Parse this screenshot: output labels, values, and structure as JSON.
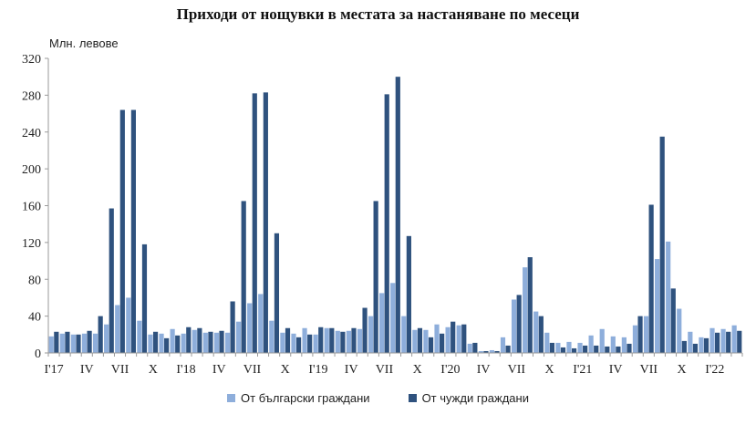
{
  "chart_data": {
    "type": "bar",
    "title": "Приходи от нощувки в местата за настаняване по месеци",
    "ylabel": "Млн. левове",
    "xlabel": "",
    "ylim": [
      0,
      320
    ],
    "yticks": [
      0,
      40,
      80,
      120,
      160,
      200,
      240,
      280,
      320
    ],
    "grid": false,
    "legend_position": "bottom",
    "categories": [
      "I'17",
      "II'17",
      "III'17",
      "IV'17",
      "V'17",
      "VI'17",
      "VII'17",
      "VIII'17",
      "IX'17",
      "X'17",
      "XI'17",
      "XII'17",
      "I'18",
      "II'18",
      "III'18",
      "IV'18",
      "V'18",
      "VI'18",
      "VII'18",
      "VIII'18",
      "IX'18",
      "X'18",
      "XI'18",
      "XII'18",
      "I'19",
      "II'19",
      "III'19",
      "IV'19",
      "V'19",
      "VI'19",
      "VII'19",
      "VIII'19",
      "IX'19",
      "X'19",
      "XI'19",
      "XII'19",
      "I'20",
      "II'20",
      "III'20",
      "IV'20",
      "V'20",
      "VI'20",
      "VII'20",
      "VIII'20",
      "IX'20",
      "X'20",
      "XI'20",
      "XII'20",
      "I'21",
      "II'21",
      "III'21",
      "IV'21",
      "V'21",
      "VI'21",
      "VII'21",
      "VIII'21",
      "IX'21",
      "X'21",
      "XI'21",
      "XII'21",
      "I'22",
      "II'22",
      "III'22"
    ],
    "tick_labels": [
      {
        "index": 0,
        "label": "I'17"
      },
      {
        "index": 3,
        "label": "IV"
      },
      {
        "index": 6,
        "label": "VII"
      },
      {
        "index": 9,
        "label": "X"
      },
      {
        "index": 12,
        "label": "I'18"
      },
      {
        "index": 15,
        "label": "IV"
      },
      {
        "index": 18,
        "label": "VII"
      },
      {
        "index": 21,
        "label": "X"
      },
      {
        "index": 24,
        "label": "I'19"
      },
      {
        "index": 27,
        "label": "IV"
      },
      {
        "index": 30,
        "label": "VII"
      },
      {
        "index": 33,
        "label": "X"
      },
      {
        "index": 36,
        "label": "I'20"
      },
      {
        "index": 39,
        "label": "IV"
      },
      {
        "index": 42,
        "label": "VII"
      },
      {
        "index": 45,
        "label": "X"
      },
      {
        "index": 48,
        "label": "I'21"
      },
      {
        "index": 51,
        "label": "IV"
      },
      {
        "index": 54,
        "label": "VII"
      },
      {
        "index": 57,
        "label": "X"
      },
      {
        "index": 60,
        "label": "I'22"
      }
    ],
    "series": [
      {
        "name": "От български граждани",
        "color": "#8eaedb",
        "values": [
          18,
          21,
          20,
          21,
          21,
          31,
          52,
          60,
          35,
          20,
          21,
          26,
          21,
          25,
          22,
          22,
          22,
          34,
          54,
          64,
          35,
          22,
          21,
          27,
          20,
          27,
          24,
          24,
          26,
          40,
          65,
          76,
          40,
          25,
          25,
          31,
          28,
          30,
          10,
          2,
          3,
          17,
          58,
          93,
          45,
          22,
          11,
          12,
          11,
          19,
          26,
          18,
          17,
          30,
          40,
          102,
          121,
          48,
          23,
          17,
          27,
          26,
          30
        ]
      },
      {
        "name": "От чужди граждани",
        "color": "#2f527e",
        "values": [
          23,
          23,
          20,
          24,
          40,
          157,
          264,
          264,
          118,
          23,
          16,
          19,
          28,
          27,
          23,
          24,
          56,
          165,
          282,
          283,
          130,
          27,
          17,
          20,
          28,
          27,
          23,
          27,
          49,
          165,
          281,
          300,
          127,
          27,
          17,
          21,
          34,
          31,
          11,
          2,
          2,
          8,
          63,
          104,
          40,
          11,
          6,
          5,
          8,
          8,
          7,
          7,
          10,
          40,
          161,
          235,
          70,
          13,
          10,
          16,
          22,
          23,
          24
        ]
      }
    ]
  }
}
